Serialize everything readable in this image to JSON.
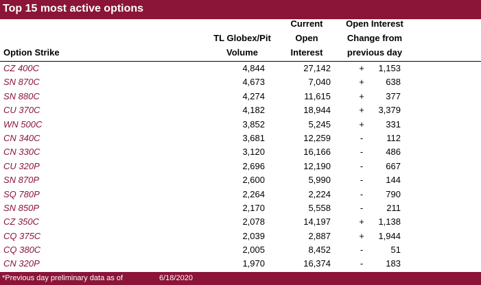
{
  "title": "Top 15 most active options",
  "headers": {
    "strike": [
      "Option Strike"
    ],
    "volume": [
      "TL Globex/Pit",
      "Volume"
    ],
    "oi": [
      "Current",
      "Open",
      "Interest"
    ],
    "change": [
      "Open Interest",
      "Change from",
      "previous day"
    ]
  },
  "rows": [
    {
      "strike": "CZ 400C",
      "volume": "4,844",
      "oi": "27,142",
      "sign": "+",
      "change": "1,153"
    },
    {
      "strike": "SN 870C",
      "volume": "4,673",
      "oi": "7,040",
      "sign": "+",
      "change": "638"
    },
    {
      "strike": "SN 880C",
      "volume": "4,274",
      "oi": "11,615",
      "sign": "+",
      "change": "377"
    },
    {
      "strike": "CU 370C",
      "volume": "4,182",
      "oi": "18,944",
      "sign": "+",
      "change": "3,379"
    },
    {
      "strike": "WN 500C",
      "volume": "3,852",
      "oi": "5,245",
      "sign": "+",
      "change": "331"
    },
    {
      "strike": "CN 340C",
      "volume": "3,681",
      "oi": "12,259",
      "sign": "-",
      "change": "112"
    },
    {
      "strike": "CN 330C",
      "volume": "3,120",
      "oi": "16,166",
      "sign": "-",
      "change": "486"
    },
    {
      "strike": "CU 320P",
      "volume": "2,696",
      "oi": "12,190",
      "sign": "-",
      "change": "667"
    },
    {
      "strike": "SN 870P",
      "volume": "2,600",
      "oi": "5,990",
      "sign": "-",
      "change": "144"
    },
    {
      "strike": "SQ 780P",
      "volume": "2,264",
      "oi": "2,224",
      "sign": "-",
      "change": "790"
    },
    {
      "strike": "SN 850P",
      "volume": "2,170",
      "oi": "5,558",
      "sign": "-",
      "change": "211"
    },
    {
      "strike": "CZ 350C",
      "volume": "2,078",
      "oi": "14,197",
      "sign": "+",
      "change": "1,138"
    },
    {
      "strike": "CQ 375C",
      "volume": "2,039",
      "oi": "2,887",
      "sign": "+",
      "change": "1,944"
    },
    {
      "strike": "CQ 380C",
      "volume": "2,005",
      "oi": "8,452",
      "sign": "-",
      "change": "51"
    },
    {
      "strike": "CN 320P",
      "volume": "1,970",
      "oi": "16,374",
      "sign": "-",
      "change": "183"
    }
  ],
  "footer": {
    "note": "*Previous day preliminary data as of",
    "date": "6/18/2020"
  },
  "colors": {
    "brand": "#8a1538",
    "text": "#000000",
    "background": "#ffffff"
  }
}
